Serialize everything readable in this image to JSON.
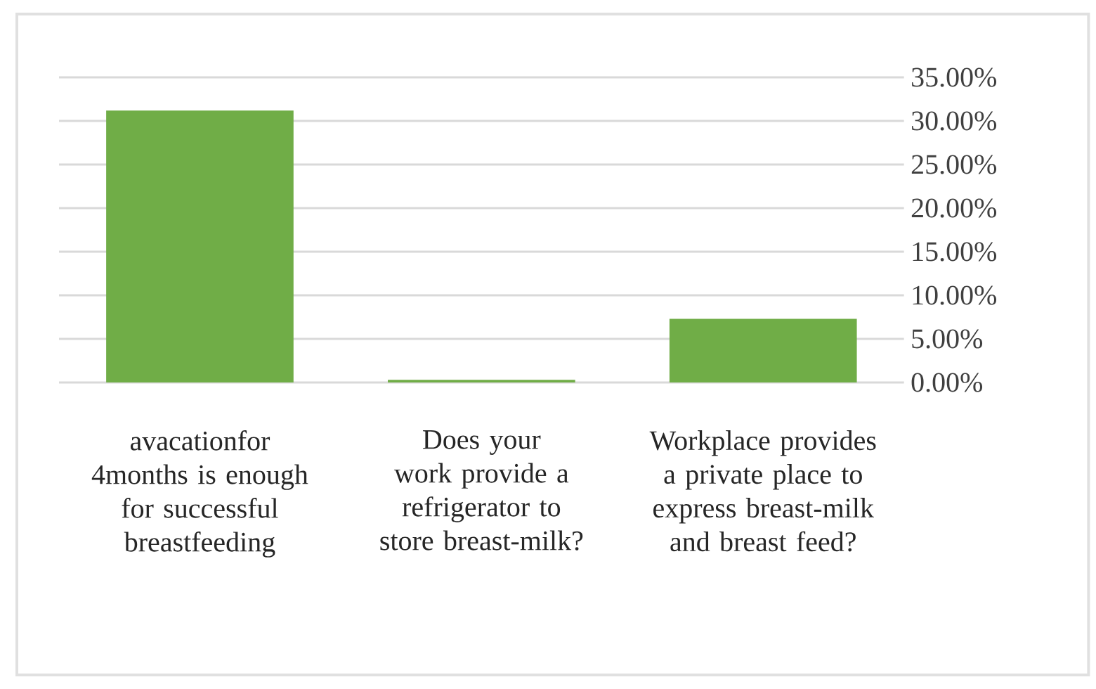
{
  "chart_data": {
    "type": "bar",
    "categories": [
      "avacationfor 4months is enough for successful breastfeeding",
      "Does your work provide a refrigerator to store breast-milk?",
      "Workplace provides a private place to express breast-milk and breast feed?"
    ],
    "values": [
      31.2,
      0.3,
      7.3
    ],
    "color": "#70ad47",
    "ylim": [
      0,
      35
    ],
    "yticks": [
      {
        "value": 0,
        "label": "0.00%"
      },
      {
        "value": 5,
        "label": "5.00%"
      },
      {
        "value": 10,
        "label": "10.00%"
      },
      {
        "value": 15,
        "label": "15.00%"
      },
      {
        "value": 20,
        "label": "20.00%"
      },
      {
        "value": 25,
        "label": "25.00%"
      },
      {
        "value": 30,
        "label": "30.00%"
      },
      {
        "value": 35,
        "label": "35.00%"
      }
    ],
    "grid": "y"
  }
}
